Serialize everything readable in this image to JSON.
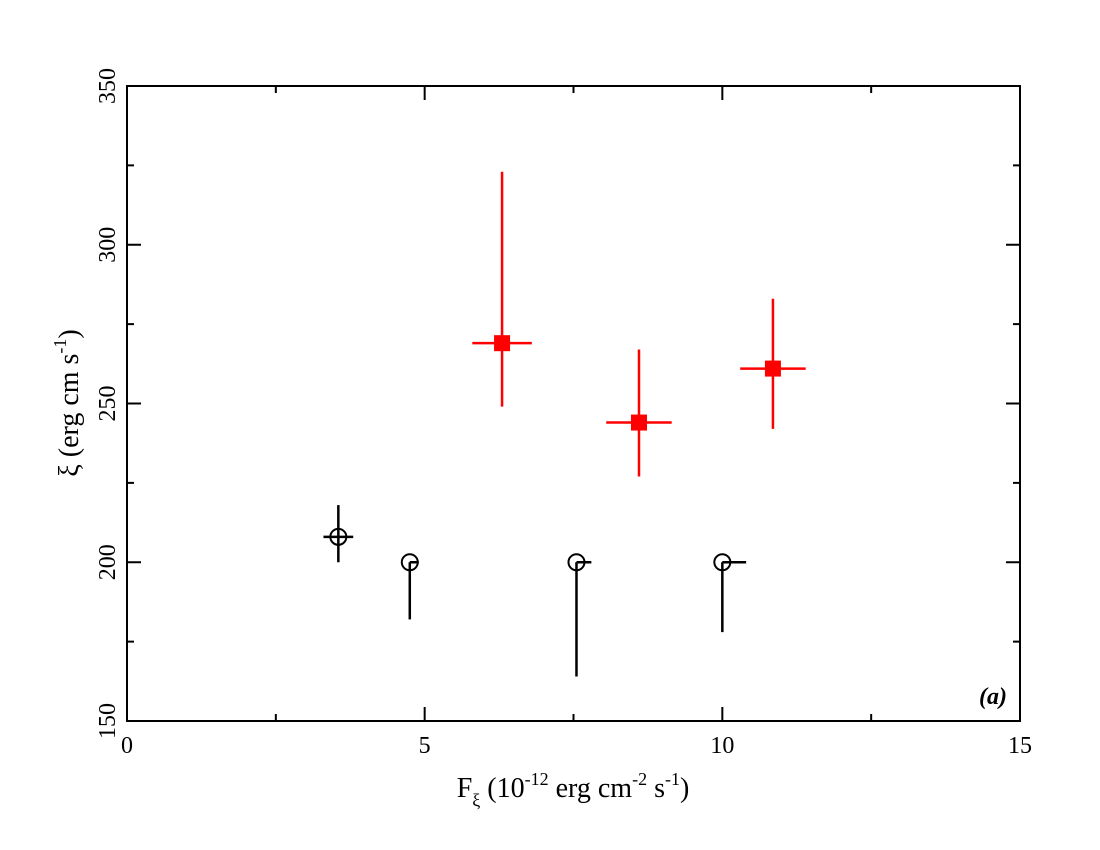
{
  "chart_data": {
    "type": "scatter",
    "x_title": {
      "main": "F",
      "sub": "ξ",
      "rest_open": " (10",
      "sup1": "-12",
      "rest_mid": " erg cm",
      "sup2": "-2",
      "rest_s": " s",
      "sup3": "-1",
      "rest_close": ")"
    },
    "y_title": {
      "main": "ξ (erg cm s",
      "sup": "-1",
      "rest_close": ")"
    },
    "xlim": [
      0,
      15
    ],
    "ylim": [
      150,
      350
    ],
    "x_ticks": [
      {
        "value": 0,
        "label": "0"
      },
      {
        "value": 5,
        "label": "5"
      },
      {
        "value": 10,
        "label": "10"
      },
      {
        "value": 15,
        "label": "15"
      }
    ],
    "y_ticks": [
      {
        "value": 150,
        "label": "150"
      },
      {
        "value": 200,
        "label": "200"
      },
      {
        "value": 250,
        "label": "250"
      },
      {
        "value": 300,
        "label": "300"
      },
      {
        "value": 350,
        "label": "350"
      }
    ],
    "x_minor_step": 2.5,
    "y_minor_step": 25,
    "annotation": "(a)",
    "series": [
      {
        "marker": "open-circle",
        "color": "#000000",
        "points": [
          {
            "x": 3.55,
            "y": 208,
            "xerr": [
              0.25,
              0.25
            ],
            "yerr": [
              8,
              10
            ]
          },
          {
            "x": 4.75,
            "y": 200,
            "xerr": [
              0,
              0.15
            ],
            "yerr": [
              18,
              0
            ]
          },
          {
            "x": 7.55,
            "y": 200,
            "xerr": [
              0,
              0.25
            ],
            "yerr": [
              36,
              0
            ]
          },
          {
            "x": 10.0,
            "y": 200,
            "xerr": [
              0,
              0.4
            ],
            "yerr": [
              22,
              0
            ]
          }
        ]
      },
      {
        "marker": "filled-square",
        "color": "#ff0000",
        "points": [
          {
            "x": 6.3,
            "y": 269,
            "xerr": [
              0.5,
              0.5
            ],
            "yerr": [
              20,
              54
            ]
          },
          {
            "x": 8.6,
            "y": 244,
            "xerr": [
              0.55,
              0.55
            ],
            "yerr": [
              17,
              23
            ]
          },
          {
            "x": 10.85,
            "y": 261,
            "xerr": [
              0.55,
              0.55
            ],
            "yerr": [
              19,
              22
            ]
          }
        ]
      }
    ]
  }
}
